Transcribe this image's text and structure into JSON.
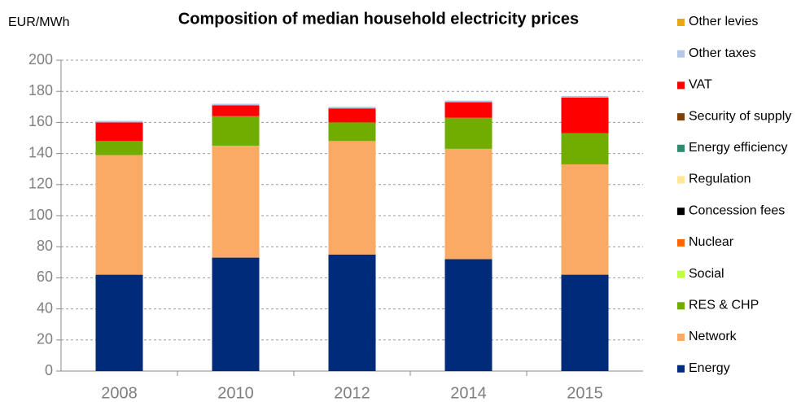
{
  "chart_data": {
    "type": "stacked_bar",
    "title": "Composition of median household electricity prices",
    "y_label": "EUR/MWh",
    "categories": [
      "2008",
      "2010",
      "2012",
      "2014",
      "2015"
    ],
    "series": [
      {
        "name": "Energy",
        "color": "#002a7a",
        "values": [
          62,
          73,
          75,
          72,
          62
        ]
      },
      {
        "name": "Network",
        "color": "#fbaa66",
        "values": [
          77,
          72,
          73,
          71,
          71
        ]
      },
      {
        "name": "RES & CHP",
        "color": "#70ad00",
        "values": [
          9,
          19,
          12,
          20,
          20
        ]
      },
      {
        "name": "Social",
        "color": "#c0ff40",
        "values": [
          0,
          0,
          0,
          0,
          0
        ]
      },
      {
        "name": "Nuclear",
        "color": "#ff6600",
        "values": [
          0,
          0,
          0,
          0,
          0
        ]
      },
      {
        "name": "Concession fees",
        "color": "#000000",
        "values": [
          0,
          0,
          0,
          0,
          0
        ]
      },
      {
        "name": "Regulation",
        "color": "#ffe699",
        "values": [
          0,
          0,
          0,
          0,
          0
        ]
      },
      {
        "name": "Energy efficiency",
        "color": "#2e8b6e",
        "values": [
          0,
          0,
          0,
          0,
          0
        ]
      },
      {
        "name": "Security of supply",
        "color": "#7f3f00",
        "values": [
          0,
          0,
          0,
          0,
          0
        ]
      },
      {
        "name": "VAT",
        "color": "#ff0000",
        "values": [
          12,
          7,
          9,
          10,
          23
        ]
      },
      {
        "name": "Other taxes",
        "color": "#b4c7e7",
        "values": [
          1,
          1,
          1,
          1,
          1
        ]
      },
      {
        "name": "Other levies",
        "color": "#e6a817",
        "values": [
          0,
          0,
          0,
          0,
          0
        ]
      }
    ],
    "ylim": [
      0,
      200
    ],
    "yticks": [
      0,
      20,
      40,
      60,
      80,
      100,
      120,
      140,
      160,
      180,
      200
    ],
    "grid": true
  }
}
